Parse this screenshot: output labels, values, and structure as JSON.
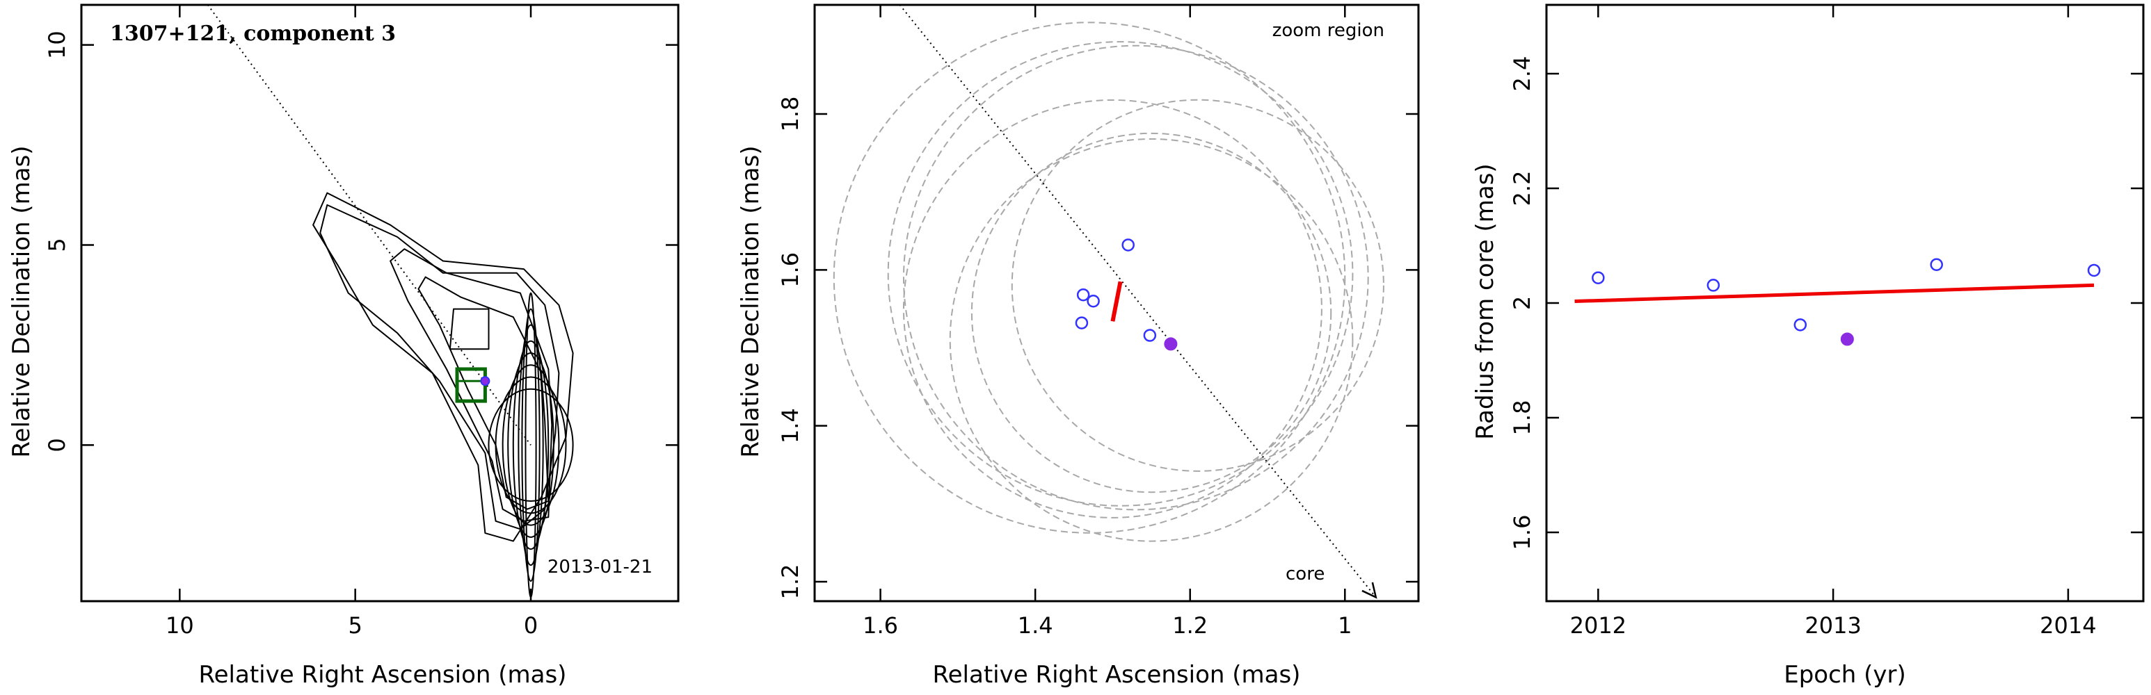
{
  "chart_data": [
    {
      "type": "contour",
      "title": "1307+121, component 3",
      "date_label": "2013-01-21",
      "xlabel": "Relative Right Ascension (mas)",
      "ylabel": "Relative Declination (mas)",
      "xlim": [
        12.8,
        -4.2
      ],
      "ylim": [
        -3.9,
        11.0
      ],
      "xticks": [
        10,
        5,
        0
      ],
      "yticks": [
        0,
        5,
        10
      ],
      "direction_line": [
        [
          9.2,
          11.0
        ],
        [
          0,
          0
        ]
      ],
      "zoom_box": {
        "x_range": [
          1.3,
          2.1
        ],
        "y_range": [
          1.1,
          1.9
        ]
      },
      "component_position": [
        1.3,
        1.6
      ],
      "core_contours": [
        [
          1.2,
          1.4
        ],
        [
          1.0,
          1.7
        ],
        [
          0.8,
          2.0
        ],
        [
          0.65,
          2.3
        ],
        [
          0.5,
          2.6
        ],
        [
          0.35,
          3.0
        ],
        [
          0.25,
          3.4
        ],
        [
          0.15,
          3.8
        ]
      ],
      "extended_contours": [
        [
          [
            -0.3,
            -1.3
          ],
          [
            -1.0,
            0.2
          ],
          [
            -1.2,
            2.3
          ],
          [
            -0.8,
            3.5
          ],
          [
            0.2,
            4.4
          ],
          [
            2.5,
            4.6
          ],
          [
            4.0,
            5.5
          ],
          [
            5.8,
            6.3
          ],
          [
            6.2,
            5.5
          ],
          [
            5.5,
            4.5
          ],
          [
            4.5,
            3.0
          ],
          [
            2.8,
            1.8
          ],
          [
            1.5,
            -0.5
          ],
          [
            1.3,
            -2.2
          ],
          [
            0.5,
            -2.4
          ]
        ],
        [
          [
            -0.4,
            -1.6
          ],
          [
            -0.7,
            0.3
          ],
          [
            -0.8,
            1.8
          ],
          [
            -0.4,
            3.5
          ],
          [
            0.4,
            4.3
          ],
          [
            2.5,
            4.3
          ],
          [
            3.8,
            5.2
          ],
          [
            5.8,
            6.0
          ],
          [
            6.0,
            5.3
          ],
          [
            5.2,
            3.8
          ],
          [
            3.8,
            2.8
          ],
          [
            2.6,
            1.6
          ],
          [
            1.3,
            -0.2
          ],
          [
            1.0,
            -1.9
          ],
          [
            0.3,
            -2.1
          ]
        ],
        [
          [
            -0.5,
            -1.8
          ],
          [
            -0.6,
            0.5
          ],
          [
            -0.5,
            1.9
          ],
          [
            0.3,
            3.8
          ],
          [
            2.4,
            4.3
          ],
          [
            3.6,
            4.9
          ],
          [
            4.0,
            4.6
          ],
          [
            3.5,
            3.6
          ],
          [
            2.4,
            1.9
          ],
          [
            1.1,
            -0.4
          ],
          [
            0.8,
            -1.6
          ],
          [
            0.2,
            -1.9
          ]
        ],
        [
          [
            -0.5,
            -1.4
          ],
          [
            -0.4,
            0.6
          ],
          [
            -0.3,
            1.8
          ],
          [
            0.5,
            3.2
          ],
          [
            2.0,
            3.7
          ],
          [
            3.0,
            4.2
          ],
          [
            3.2,
            3.9
          ],
          [
            2.6,
            3.0
          ],
          [
            1.8,
            1.4
          ],
          [
            1.0,
            0.0
          ],
          [
            0.7,
            -1.3
          ],
          [
            0.1,
            -1.6
          ]
        ],
        [
          [
            1.2,
            2.4
          ],
          [
            1.2,
            3.4
          ],
          [
            2.2,
            3.4
          ],
          [
            2.3,
            2.4
          ]
        ]
      ]
    },
    {
      "type": "scatter",
      "label": "zoom region",
      "core_label": "core",
      "xlabel": "Relative Right Ascension (mas)",
      "ylabel": "Relative Declination (mas)",
      "xlim": [
        1.685,
        0.905
      ],
      "ylim": [
        1.175,
        1.94
      ],
      "xticks": [
        1.6,
        1.4,
        1.2,
        1.0
      ],
      "yticks": [
        1.2,
        1.4,
        1.6,
        1.8
      ],
      "open_points": [
        [
          1.28,
          1.632
        ],
        [
          1.338,
          1.568
        ],
        [
          1.325,
          1.56
        ],
        [
          1.34,
          1.532
        ],
        [
          1.252,
          1.516
        ]
      ],
      "filled_point": [
        1.225,
        1.505
      ],
      "fit_segment": [
        [
          1.29,
          1.585
        ],
        [
          1.3,
          1.534
        ]
      ],
      "direction_line": [
        [
          1.575,
          1.94
        ],
        [
          0.96,
          1.18
        ]
      ],
      "circles": [
        [
          1.33,
          1.59,
          0.33
        ],
        [
          1.27,
          1.59,
          0.3
        ],
        [
          1.25,
          1.545,
          0.232
        ],
        [
          1.29,
          1.595,
          0.3
        ],
        [
          1.3,
          1.55,
          0.27
        ],
        [
          1.19,
          1.58,
          0.24
        ],
        [
          1.25,
          1.51,
          0.26
        ]
      ],
      "colors": {
        "points": "#3333ff",
        "filled": "#8a2be2",
        "fit": "#ee0000",
        "circles": "#a8a8a8"
      }
    },
    {
      "type": "scatter",
      "xlabel": "Epoch (yr)",
      "ylabel": "Radius from core (mas)",
      "xlim": [
        2011.78,
        2014.32
      ],
      "ylim": [
        1.48,
        2.52
      ],
      "xticks": [
        2012,
        2013,
        2014
      ],
      "yticks": [
        1.6,
        1.8,
        2,
        2.2,
        2.4
      ],
      "open_points": [
        [
          2012.0,
          2.044
        ],
        [
          2012.49,
          2.031
        ],
        [
          2012.86,
          1.962
        ],
        [
          2013.44,
          2.067
        ],
        [
          2014.11,
          2.057
        ]
      ],
      "filled_point": [
        2013.06,
        1.937
      ],
      "fit_line": [
        [
          2011.9,
          2.003
        ],
        [
          2014.11,
          2.031
        ]
      ],
      "colors": {
        "points": "#3333ff",
        "filled": "#8a2be2",
        "fit": "#ee0000"
      }
    }
  ]
}
